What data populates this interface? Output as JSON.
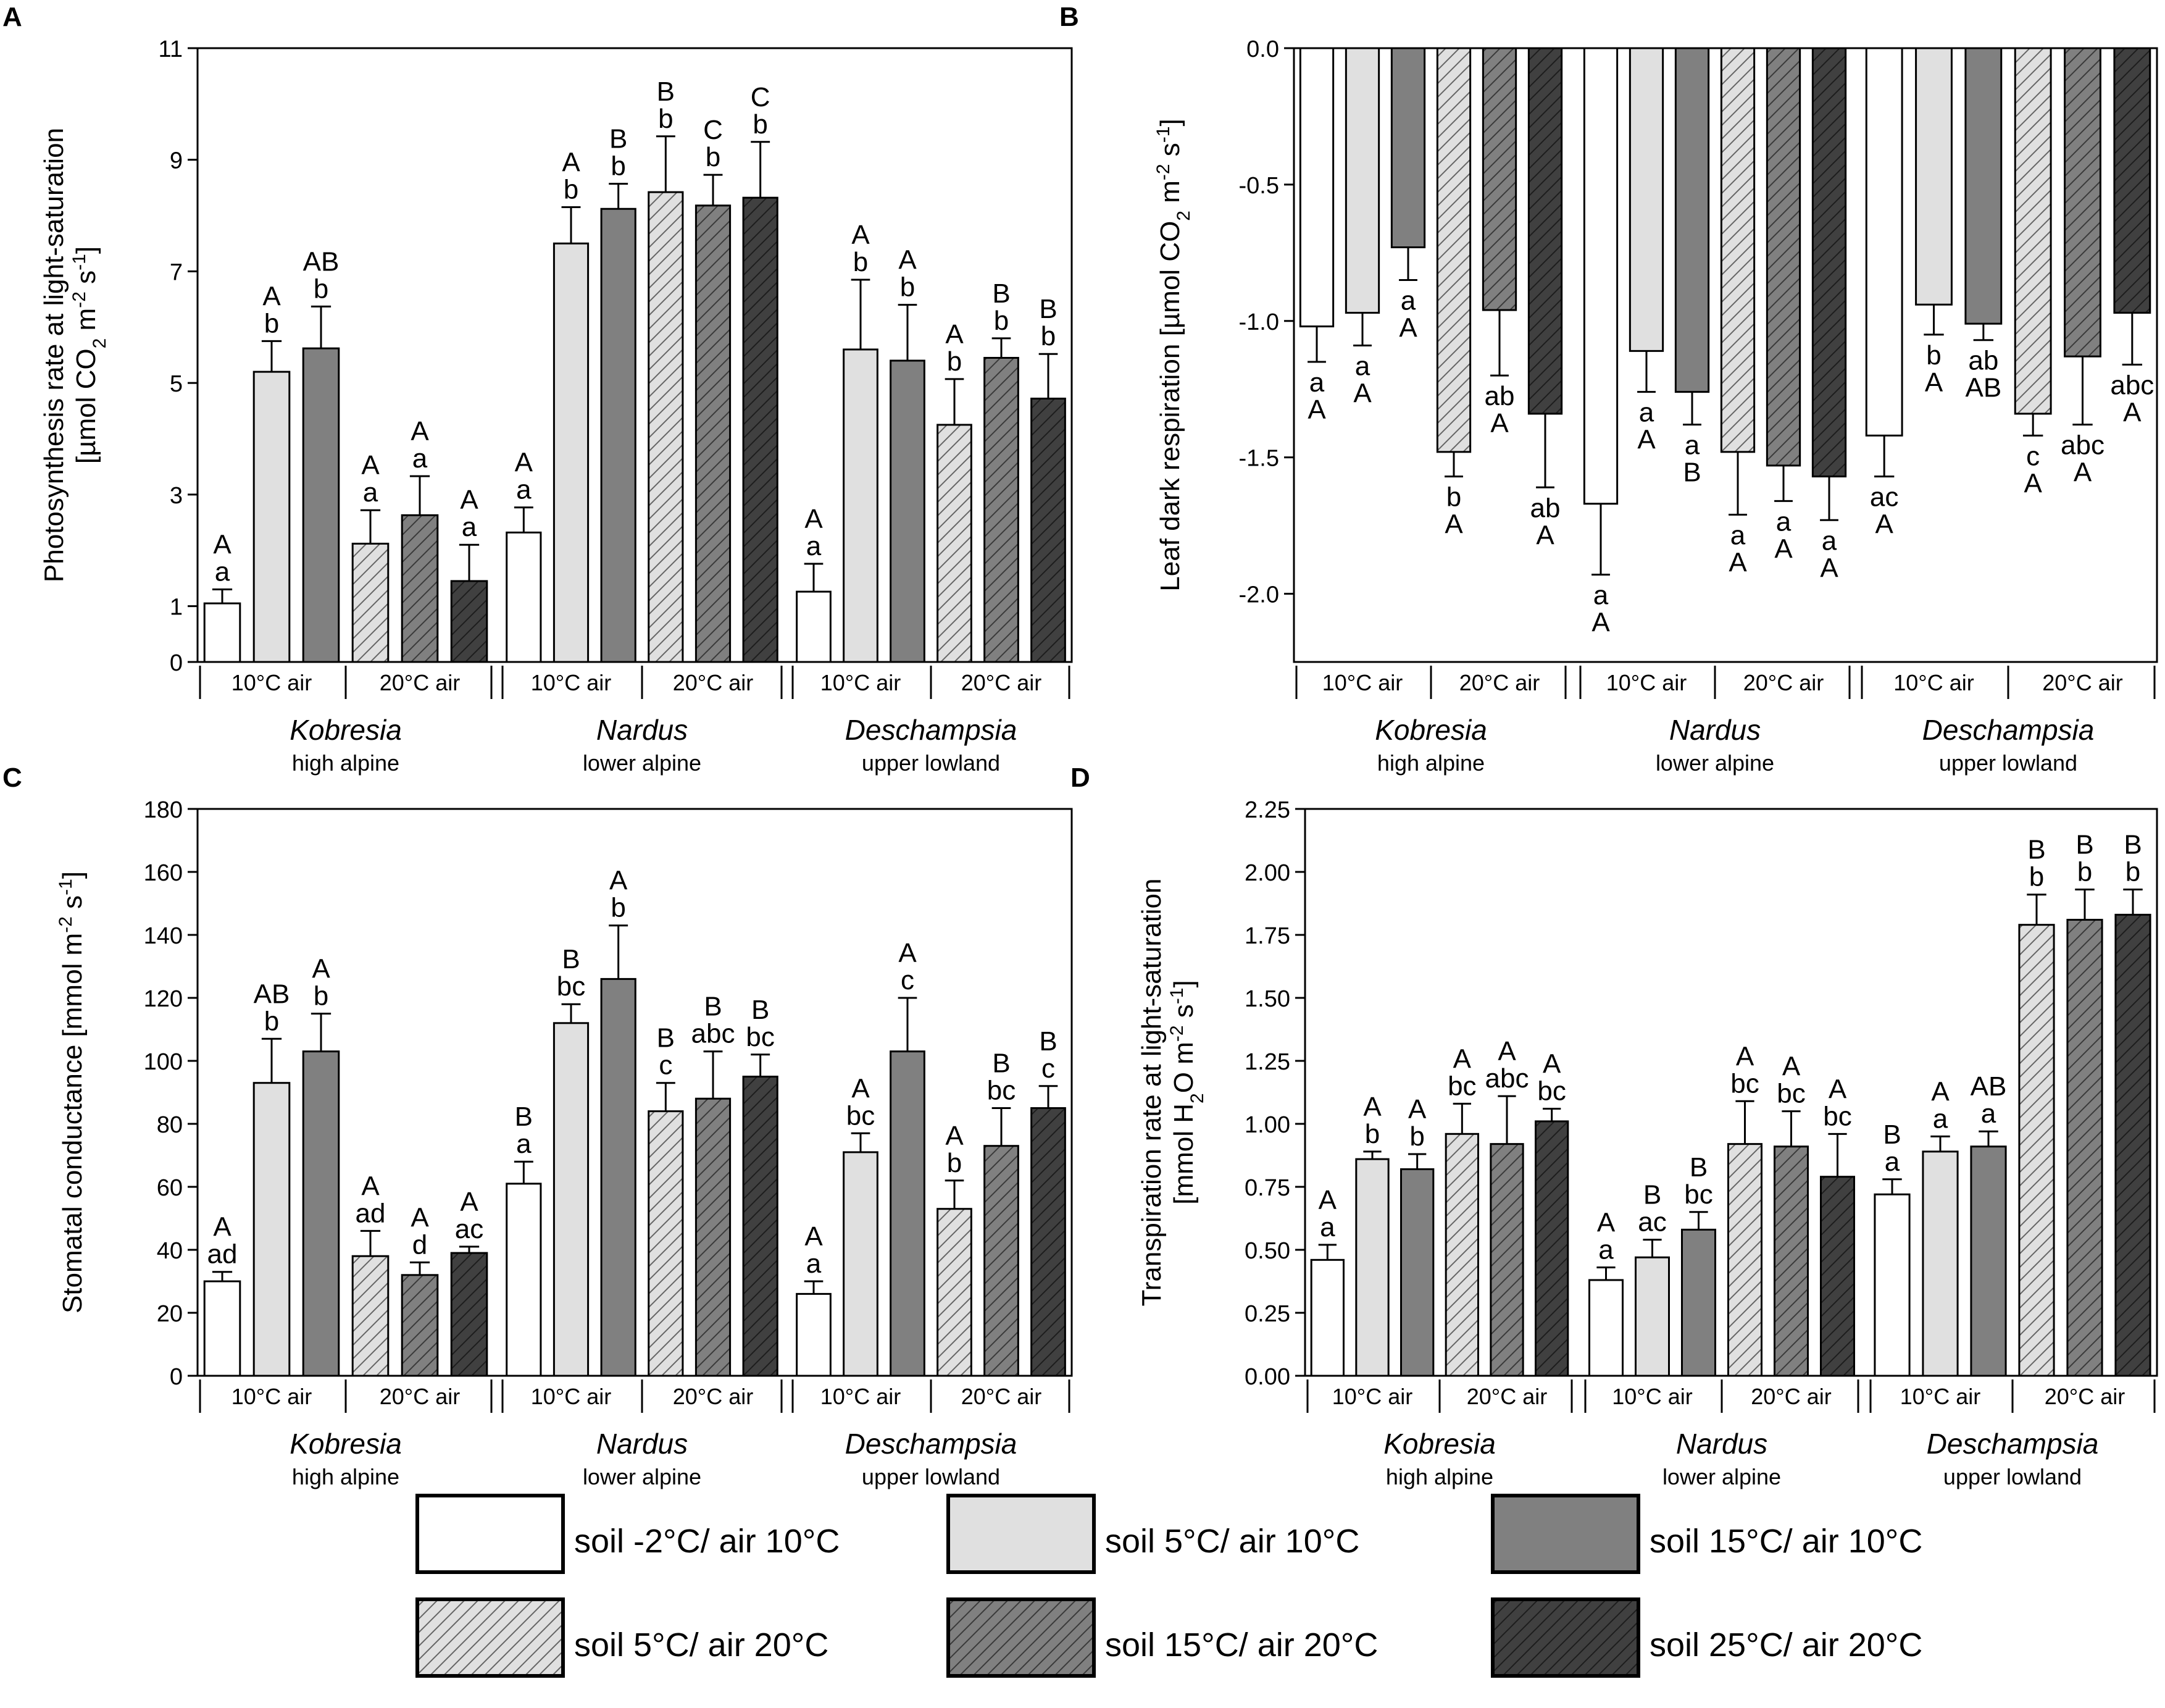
{
  "figure": {
    "groups": [
      {
        "genus": "Kobresia",
        "zone": "high alpine"
      },
      {
        "genus": "Nardus",
        "zone": "lower alpine"
      },
      {
        "genus": "Deschampsia",
        "zone": "upper lowland"
      }
    ],
    "air_labels": [
      "10°C air",
      "20°C air"
    ]
  },
  "legend": [
    {
      "label": "soil -2°C/ air 10°C",
      "fill": "#ffffff",
      "hatch": false
    },
    {
      "label": "soil 5°C/ air 10°C",
      "fill": "#e0e0e0",
      "hatch": false
    },
    {
      "label": "soil 15°C/ air 10°C",
      "fill": "#808080",
      "hatch": false
    },
    {
      "label": "soil 5°C/ air 20°C",
      "fill": "#e0e0e0",
      "hatch": true
    },
    {
      "label": "soil 15°C/ air 20°C",
      "fill": "#808080",
      "hatch": true
    },
    {
      "label": "soil 25°C/ air 20°C",
      "fill": "#404040",
      "hatch": true
    }
  ],
  "chart_data": [
    {
      "panel": "A",
      "type": "bar",
      "ylabel_line1": "Photosynthesis rate at light-saturation",
      "ylabel_line2": "[µmol CO2 m-2 s-1]",
      "ylim": [
        0,
        11
      ],
      "yticks": [
        0,
        1,
        3,
        5,
        7,
        9,
        11
      ],
      "tick_format": 0,
      "categories": [
        "Kobresia",
        "Nardus",
        "Deschampsia"
      ],
      "series": [
        {
          "name": "soil -2°C/ air 10°C",
          "values": [
            1.05,
            2.32,
            1.26
          ],
          "errors": [
            0.25,
            0.45,
            0.5
          ],
          "letters": [
            [
              "A",
              "a"
            ],
            [
              "A",
              "a"
            ],
            [
              "A",
              "a"
            ]
          ]
        },
        {
          "name": "soil 5°C/ air 10°C",
          "values": [
            5.2,
            7.5,
            5.6
          ],
          "errors": [
            0.55,
            0.65,
            1.25
          ],
          "letters": [
            [
              "A",
              "b"
            ],
            [
              "A",
              "b"
            ],
            [
              "A",
              "b"
            ]
          ]
        },
        {
          "name": "soil 15°C/ air 10°C",
          "values": [
            5.62,
            8.12,
            5.4
          ],
          "errors": [
            0.75,
            0.45,
            1.0
          ],
          "letters": [
            [
              "AB",
              "b"
            ],
            [
              "B",
              "b"
            ],
            [
              "A",
              "b"
            ]
          ]
        },
        {
          "name": "soil 5°C/ air 20°C",
          "values": [
            2.12,
            8.42,
            4.25
          ],
          "errors": [
            0.6,
            1.0,
            0.82
          ],
          "letters": [
            [
              "A",
              "a"
            ],
            [
              "B",
              "b"
            ],
            [
              "A",
              "b"
            ]
          ]
        },
        {
          "name": "soil 15°C/ air 20°C",
          "values": [
            2.63,
            8.18,
            5.45
          ],
          "errors": [
            0.7,
            0.55,
            0.35
          ],
          "letters": [
            [
              "A",
              "a"
            ],
            [
              "C",
              "b"
            ],
            [
              "B",
              "b"
            ]
          ]
        },
        {
          "name": "soil 25°C/ air 20°C",
          "values": [
            1.45,
            8.32,
            4.72
          ],
          "errors": [
            0.65,
            1.0,
            0.8
          ],
          "letters": [
            [
              "A",
              "a"
            ],
            [
              "C",
              "b"
            ],
            [
              "B",
              "b"
            ]
          ]
        }
      ]
    },
    {
      "panel": "B",
      "type": "bar",
      "ylabel_line1": "Leaf dark respiration [µmol CO2 m-2 s-1]",
      "ylabel_line2": "",
      "ylim": [
        -2.25,
        0
      ],
      "yticks": [
        0,
        -0.5,
        -1.0,
        -1.5,
        -2.0
      ],
      "tick_format": 1,
      "categories": [
        "Kobresia",
        "Nardus",
        "Deschampsia"
      ],
      "series": [
        {
          "name": "soil -2°C/ air 10°C",
          "values": [
            -1.02,
            -1.67,
            -1.42
          ],
          "errors": [
            0.13,
            0.26,
            0.15
          ],
          "letters": [
            [
              "a",
              "A"
            ],
            [
              "a",
              "A"
            ],
            [
              "ac",
              "A"
            ]
          ]
        },
        {
          "name": "soil 5°C/ air 10°C",
          "values": [
            -0.97,
            -1.11,
            -0.94
          ],
          "errors": [
            0.12,
            0.15,
            0.11
          ],
          "letters": [
            [
              "a",
              "A"
            ],
            [
              "a",
              "A"
            ],
            [
              "b",
              "A"
            ]
          ]
        },
        {
          "name": "soil 15°C/ air 10°C",
          "values": [
            -0.73,
            -1.26,
            -1.01
          ],
          "errors": [
            0.12,
            0.12,
            0.06
          ],
          "letters": [
            [
              "a",
              "A"
            ],
            [
              "a",
              "B"
            ],
            [
              "ab",
              "AB"
            ]
          ]
        },
        {
          "name": "soil 5°C/ air 20°C",
          "values": [
            -1.48,
            -1.48,
            -1.34
          ],
          "errors": [
            0.09,
            0.23,
            0.08
          ],
          "letters": [
            [
              "b",
              "A"
            ],
            [
              "a",
              "A"
            ],
            [
              "c",
              "A"
            ]
          ]
        },
        {
          "name": "soil 15°C/ air 20°C",
          "values": [
            -0.96,
            -1.53,
            -1.13
          ],
          "errors": [
            0.24,
            0.13,
            0.25
          ],
          "letters": [
            [
              "ab",
              "A"
            ],
            [
              "a",
              "A"
            ],
            [
              "abc",
              "A"
            ]
          ]
        },
        {
          "name": "soil 25°C/ air 20°C",
          "values": [
            -1.34,
            -1.57,
            -0.97
          ],
          "errors": [
            0.27,
            0.16,
            0.19
          ],
          "letters": [
            [
              "ab",
              "A"
            ],
            [
              "a",
              "A"
            ],
            [
              "abc",
              "A"
            ]
          ]
        }
      ]
    },
    {
      "panel": "C",
      "type": "bar",
      "ylabel_line1": "Stomatal conductance [mmol m-2 s-1]",
      "ylabel_line2": "",
      "ylim": [
        0,
        180
      ],
      "yticks": [
        0,
        20,
        40,
        60,
        80,
        100,
        120,
        140,
        160,
        180
      ],
      "tick_format": 0,
      "categories": [
        "Kobresia",
        "Nardus",
        "Deschampsia"
      ],
      "series": [
        {
          "name": "soil -2°C/ air 10°C",
          "values": [
            30,
            61,
            26
          ],
          "errors": [
            3,
            7,
            4
          ],
          "letters": [
            [
              "A",
              "ad"
            ],
            [
              "B",
              "a"
            ],
            [
              "A",
              "a"
            ]
          ]
        },
        {
          "name": "soil 5°C/ air 10°C",
          "values": [
            93,
            112,
            71
          ],
          "errors": [
            14,
            6,
            6
          ],
          "letters": [
            [
              "AB",
              "b"
            ],
            [
              "B",
              "bc"
            ],
            [
              "A",
              "bc"
            ]
          ]
        },
        {
          "name": "soil 15°C/ air 10°C",
          "values": [
            103,
            126,
            103
          ],
          "errors": [
            12,
            17,
            17
          ],
          "letters": [
            [
              "A",
              "b"
            ],
            [
              "A",
              "b"
            ],
            [
              "A",
              "c"
            ]
          ]
        },
        {
          "name": "soil 5°C/ air 20°C",
          "values": [
            38,
            84,
            53
          ],
          "errors": [
            8,
            9,
            9
          ],
          "letters": [
            [
              "A",
              "ad"
            ],
            [
              "B",
              "c"
            ],
            [
              "A",
              "b"
            ]
          ]
        },
        {
          "name": "soil 15°C/ air 20°C",
          "values": [
            32,
            88,
            73
          ],
          "errors": [
            4,
            15,
            12
          ],
          "letters": [
            [
              "A",
              "d"
            ],
            [
              "B",
              "abc"
            ],
            [
              "B",
              "bc"
            ]
          ]
        },
        {
          "name": "soil 25°C/ air 20°C",
          "values": [
            39,
            95,
            85
          ],
          "errors": [
            2,
            7,
            7
          ],
          "letters": [
            [
              "A",
              "ac"
            ],
            [
              "B",
              "bc"
            ],
            [
              "B",
              "c"
            ]
          ]
        }
      ]
    },
    {
      "panel": "D",
      "type": "bar",
      "ylabel_line1": "Transpiration rate at light-saturation",
      "ylabel_line2": "[mmol H2O m-2 s-1]",
      "ylim": [
        0,
        2.25
      ],
      "yticks": [
        0,
        0.25,
        0.5,
        0.75,
        1.0,
        1.25,
        1.5,
        1.75,
        2.0,
        2.25
      ],
      "tick_format": 2,
      "categories": [
        "Kobresia",
        "Nardus",
        "Deschampsia"
      ],
      "series": [
        {
          "name": "soil -2°C/ air 10°C",
          "values": [
            0.46,
            0.38,
            0.72
          ],
          "errors": [
            0.06,
            0.05,
            0.06
          ],
          "letters": [
            [
              "A",
              "a"
            ],
            [
              "A",
              "a"
            ],
            [
              "B",
              "a"
            ]
          ]
        },
        {
          "name": "soil 5°C/ air 10°C",
          "values": [
            0.86,
            0.47,
            0.89
          ],
          "errors": [
            0.03,
            0.07,
            0.06
          ],
          "letters": [
            [
              "A",
              "b"
            ],
            [
              "B",
              "ac"
            ],
            [
              "A",
              "a"
            ]
          ]
        },
        {
          "name": "soil 15°C/ air 10°C",
          "values": [
            0.82,
            0.58,
            0.91
          ],
          "errors": [
            0.06,
            0.07,
            0.06
          ],
          "letters": [
            [
              "A",
              "b"
            ],
            [
              "B",
              "bc"
            ],
            [
              "AB",
              "a"
            ]
          ]
        },
        {
          "name": "soil 5°C/ air 20°C",
          "values": [
            0.96,
            0.92,
            1.79
          ],
          "errors": [
            0.12,
            0.17,
            0.12
          ],
          "letters": [
            [
              "A",
              "bc"
            ],
            [
              "A",
              "bc"
            ],
            [
              "B",
              "b"
            ]
          ]
        },
        {
          "name": "soil 15°C/ air 20°C",
          "values": [
            0.92,
            0.91,
            1.81
          ],
          "errors": [
            0.19,
            0.14,
            0.12
          ],
          "letters": [
            [
              "A",
              "abc"
            ],
            [
              "A",
              "bc"
            ],
            [
              "B",
              "b"
            ]
          ]
        },
        {
          "name": "soil 25°C/ air 20°C",
          "values": [
            1.01,
            0.79,
            1.83
          ],
          "errors": [
            0.05,
            0.17,
            0.1
          ],
          "letters": [
            [
              "A",
              "bc"
            ],
            [
              "A",
              "bc"
            ],
            [
              "B",
              "b"
            ]
          ]
        }
      ]
    }
  ]
}
